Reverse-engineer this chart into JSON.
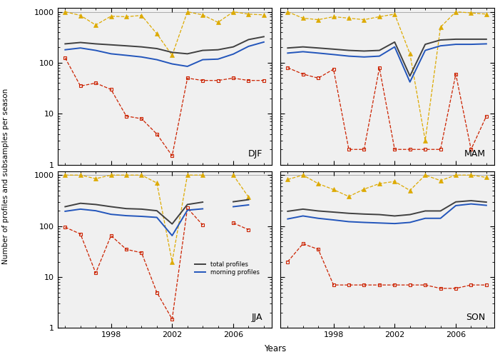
{
  "years": [
    1995,
    1996,
    1997,
    1998,
    1999,
    2000,
    2001,
    2002,
    2003,
    2004,
    2005,
    2006,
    2007,
    2008
  ],
  "seasons": [
    "DJF",
    "MAM",
    "JJA",
    "SON"
  ],
  "black_DJF": [
    235,
    250,
    235,
    225,
    215,
    205,
    190,
    160,
    150,
    175,
    180,
    205,
    285,
    325
  ],
  "blue_DJF": [
    180,
    195,
    175,
    150,
    140,
    130,
    115,
    95,
    85,
    115,
    118,
    148,
    210,
    255
  ],
  "orange_DJF": [
    1000,
    850,
    550,
    820,
    800,
    850,
    370,
    140,
    1000,
    870,
    620,
    1000,
    900,
    870
  ],
  "red_DJF": [
    125,
    35,
    40,
    30,
    9,
    8,
    4,
    1.5,
    50,
    45,
    45,
    50,
    45,
    45
  ],
  "black_MAM": [
    195,
    205,
    195,
    185,
    175,
    170,
    175,
    255,
    55,
    230,
    280,
    290,
    290,
    290
  ],
  "blue_MAM": [
    155,
    165,
    155,
    145,
    135,
    130,
    135,
    205,
    42,
    175,
    215,
    230,
    230,
    235
  ],
  "orange_MAM": [
    1000,
    750,
    700,
    800,
    750,
    700,
    800,
    900,
    150,
    3,
    500,
    1000,
    950,
    900
  ],
  "red_MAM": [
    80,
    60,
    50,
    75,
    2,
    2,
    80,
    2,
    2,
    2,
    2,
    60,
    2,
    9
  ],
  "black_JJA": [
    240,
    280,
    265,
    240,
    220,
    215,
    200,
    110,
    265,
    295,
    null,
    300,
    330,
    null
  ],
  "blue_JJA": [
    195,
    215,
    200,
    170,
    160,
    155,
    148,
    65,
    205,
    218,
    null,
    240,
    260,
    null
  ],
  "orange_JJA": [
    1000,
    1000,
    850,
    1000,
    1000,
    1000,
    700,
    20,
    1000,
    1000,
    null,
    1000,
    370,
    null
  ],
  "red_JJA": [
    95,
    70,
    12,
    65,
    35,
    30,
    5,
    1.5,
    225,
    105,
    null,
    115,
    85,
    null
  ],
  "black_SON": [
    195,
    215,
    198,
    188,
    178,
    172,
    168,
    158,
    168,
    198,
    198,
    298,
    315,
    295
  ],
  "blue_SON": [
    138,
    158,
    142,
    132,
    122,
    118,
    115,
    112,
    118,
    142,
    142,
    252,
    272,
    255
  ],
  "orange_SON": [
    820,
    1000,
    680,
    520,
    380,
    530,
    680,
    750,
    500,
    1000,
    780,
    1000,
    1000,
    900
  ],
  "red_SON": [
    20,
    45,
    35,
    7,
    7,
    7,
    7,
    7,
    7,
    7,
    6,
    6,
    7,
    7
  ],
  "xlim": [
    1994.5,
    2008.5
  ],
  "ylim": [
    1,
    1200
  ],
  "yticks": [
    1,
    10,
    100,
    1000
  ],
  "ytick_labels": [
    "1",
    "10",
    "100",
    "1000"
  ],
  "xticks": [
    1998,
    2002,
    2006
  ],
  "xlabel": "Years",
  "ylabel": "Number of profiles and subsamples per season",
  "black_color": "#404040",
  "blue_color": "#2255bb",
  "orange_color": "#ddaa00",
  "red_color": "#cc2200",
  "bg_color": "#f0f0f0",
  "hline_color": "#aaaaaa",
  "legend_black": "total profiles",
  "legend_blue": "morning profiles"
}
